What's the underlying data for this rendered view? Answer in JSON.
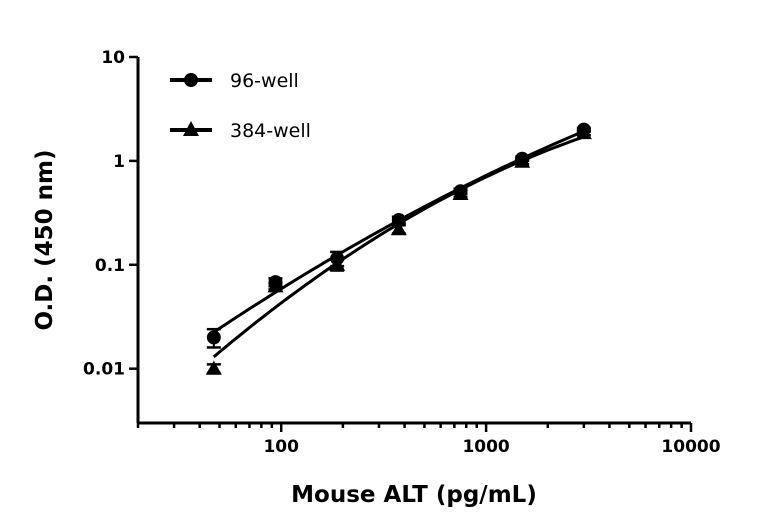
{
  "chart_data": {
    "type": "scatter",
    "title": "",
    "xlabel": "Mouse ALT (pg/mL)",
    "ylabel": "O.D. (450 nm)",
    "xscale": "log",
    "yscale": "log",
    "xlim": [
      20,
      10000
    ],
    "ylim": [
      0.003,
      10
    ],
    "xticks": [
      100,
      1000,
      10000
    ],
    "xtick_labels": [
      "100",
      "1000",
      "10000"
    ],
    "yticks": [
      0.01,
      0.1,
      1,
      10
    ],
    "ytick_labels": [
      "0.01",
      "0.1",
      "1",
      "10"
    ],
    "grid": false,
    "legend_position": "top-left",
    "x": [
      46.9,
      93.75,
      187.5,
      375,
      750,
      1500,
      3000
    ],
    "series": [
      {
        "name": "96-well",
        "marker": "circle",
        "color": "#000000",
        "values": [
          0.02,
          0.068,
          0.115,
          0.27,
          0.51,
          1.05,
          2.0
        ],
        "err": [
          0.004,
          0.006,
          0.018,
          0.02,
          0.03,
          0.05,
          0.08
        ]
      },
      {
        "name": "384-well",
        "marker": "triangle",
        "color": "#000000",
        "values": [
          0.01,
          0.062,
          0.1,
          0.22,
          0.48,
          0.98,
          1.85
        ],
        "err": [
          0.001,
          0.004,
          0.012,
          0.02,
          0.03,
          0.05,
          0.08
        ]
      }
    ]
  }
}
